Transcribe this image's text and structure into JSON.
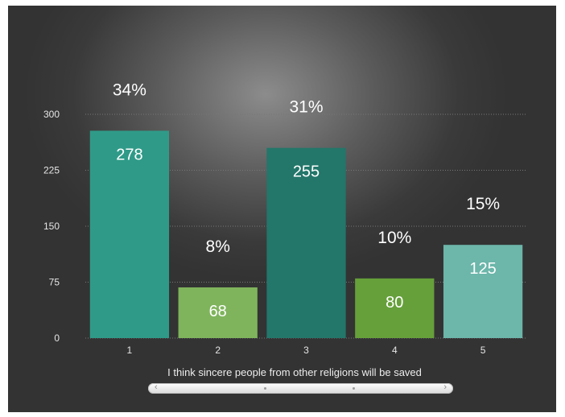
{
  "chart_data": {
    "type": "bar",
    "categories": [
      "1",
      "2",
      "3",
      "4",
      "5"
    ],
    "values": [
      278,
      68,
      255,
      80,
      125
    ],
    "percent_labels": [
      "34%",
      "8%",
      "31%",
      "10%",
      "15%"
    ],
    "value_labels": [
      "278",
      "68",
      "255",
      "80",
      "125"
    ],
    "colors": [
      "#2f9a88",
      "#7fb45c",
      "#23766a",
      "#66a03a",
      "#6cb6aa"
    ],
    "yticks": [
      "0",
      "75",
      "150",
      "225",
      "300"
    ],
    "ytick_values": [
      0,
      75,
      150,
      225,
      300
    ],
    "ylim": [
      0,
      300
    ],
    "xlabel": "I think sincere people from other religions will be saved",
    "ylabel": "",
    "title": "",
    "grid": true
  }
}
